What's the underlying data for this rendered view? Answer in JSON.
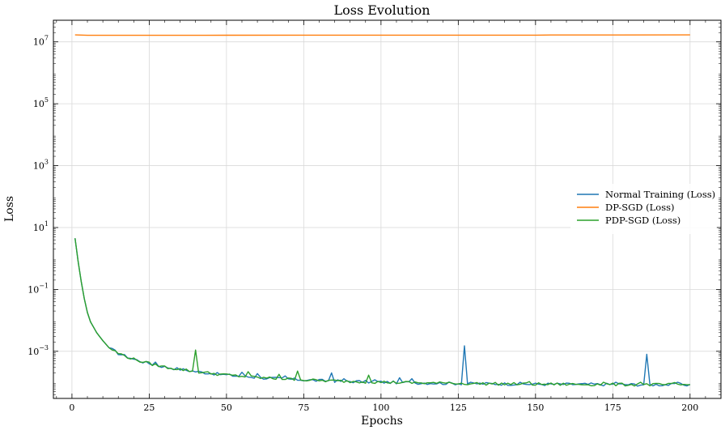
{
  "chart_data": {
    "type": "line",
    "title": "Loss Evolution",
    "xlabel": "Epochs",
    "ylabel": "Loss",
    "yscale": "log",
    "xlim": [
      -6,
      210
    ],
    "ylim": [
      3e-05,
      50000000
    ],
    "grid": true,
    "legend_position": "center-right",
    "x_ticks": [
      0,
      25,
      50,
      75,
      100,
      125,
      150,
      175,
      200
    ],
    "y_ticks": [
      {
        "value": 0.001,
        "label": "10^{-3}"
      },
      {
        "value": 0.1,
        "label": "10^{-1}"
      },
      {
        "value": 10,
        "label": "10^{1}"
      },
      {
        "value": 1000,
        "label": "10^{3}"
      },
      {
        "value": 100000,
        "label": "10^{5}"
      },
      {
        "value": 10000000,
        "label": "10^{7}"
      }
    ],
    "series": [
      {
        "name": "Normal Training (Loss)",
        "color": "#1f77b4",
        "base_curve": [
          [
            1,
            4.5
          ],
          [
            2,
            0.8
          ],
          [
            3,
            0.18
          ],
          [
            4,
            0.05
          ],
          [
            5,
            0.018
          ],
          [
            6,
            0.009
          ],
          [
            8,
            0.004
          ],
          [
            10,
            0.0022
          ],
          [
            12,
            0.0013
          ],
          [
            15,
            0.00085
          ],
          [
            20,
            0.00055
          ],
          [
            25,
            0.0004
          ],
          [
            30,
            0.00031
          ],
          [
            40,
            0.00022
          ],
          [
            50,
            0.00017
          ],
          [
            60,
            0.00014
          ],
          [
            70,
            0.000125
          ],
          [
            80,
            0.000112
          ],
          [
            100,
            0.0001
          ],
          [
            120,
            9.2e-05
          ],
          [
            150,
            8.6e-05
          ],
          [
            200,
            8.2e-05
          ]
        ],
        "spikes": [
          [
            27,
            0.00045
          ],
          [
            55,
            0.00021
          ],
          [
            60,
            0.00019
          ],
          [
            69,
            0.00016
          ],
          [
            84,
            0.0002
          ],
          [
            88,
            0.00013
          ],
          [
            98,
            0.00012
          ],
          [
            106,
            0.00014
          ],
          [
            110,
            0.00013
          ],
          [
            127,
            0.0015
          ],
          [
            145,
            0.0001
          ],
          [
            168,
            9.5e-05
          ],
          [
            176,
            0.0001
          ],
          [
            186,
            0.0008
          ],
          [
            196,
            0.0001
          ]
        ]
      },
      {
        "name": "DP-SGD (Loss)",
        "color": "#ff7f0e",
        "points": [
          [
            1,
            16800000
          ],
          [
            5,
            16300000
          ],
          [
            50,
            16400000
          ],
          [
            100,
            16500000
          ],
          [
            150,
            16500000
          ],
          [
            155,
            16700000
          ],
          [
            200,
            16800000
          ]
        ]
      },
      {
        "name": "PDP-SGD (Loss)",
        "color": "#2ca02c",
        "base_curve": [
          [
            1,
            4.5
          ],
          [
            2,
            0.8
          ],
          [
            3,
            0.18
          ],
          [
            4,
            0.05
          ],
          [
            5,
            0.018
          ],
          [
            6,
            0.009
          ],
          [
            8,
            0.004
          ],
          [
            10,
            0.0022
          ],
          [
            12,
            0.0013
          ],
          [
            15,
            0.00085
          ],
          [
            20,
            0.00055
          ],
          [
            25,
            0.0004
          ],
          [
            30,
            0.00031
          ],
          [
            40,
            0.00022
          ],
          [
            50,
            0.00017
          ],
          [
            60,
            0.00014
          ],
          [
            70,
            0.000125
          ],
          [
            80,
            0.000112
          ],
          [
            100,
            0.0001
          ],
          [
            120,
            9.2e-05
          ],
          [
            150,
            8.6e-05
          ],
          [
            200,
            8.2e-05
          ]
        ],
        "spikes": [
          [
            40,
            0.0011
          ],
          [
            57,
            0.00022
          ],
          [
            67,
            0.00018
          ],
          [
            73,
            0.00023
          ],
          [
            96,
            0.00017
          ],
          [
            122,
            0.0001
          ],
          [
            148,
            0.000105
          ],
          [
            172,
            0.0001
          ],
          [
            184,
            0.0001
          ],
          [
            195,
            9.8e-05
          ]
        ]
      }
    ]
  }
}
